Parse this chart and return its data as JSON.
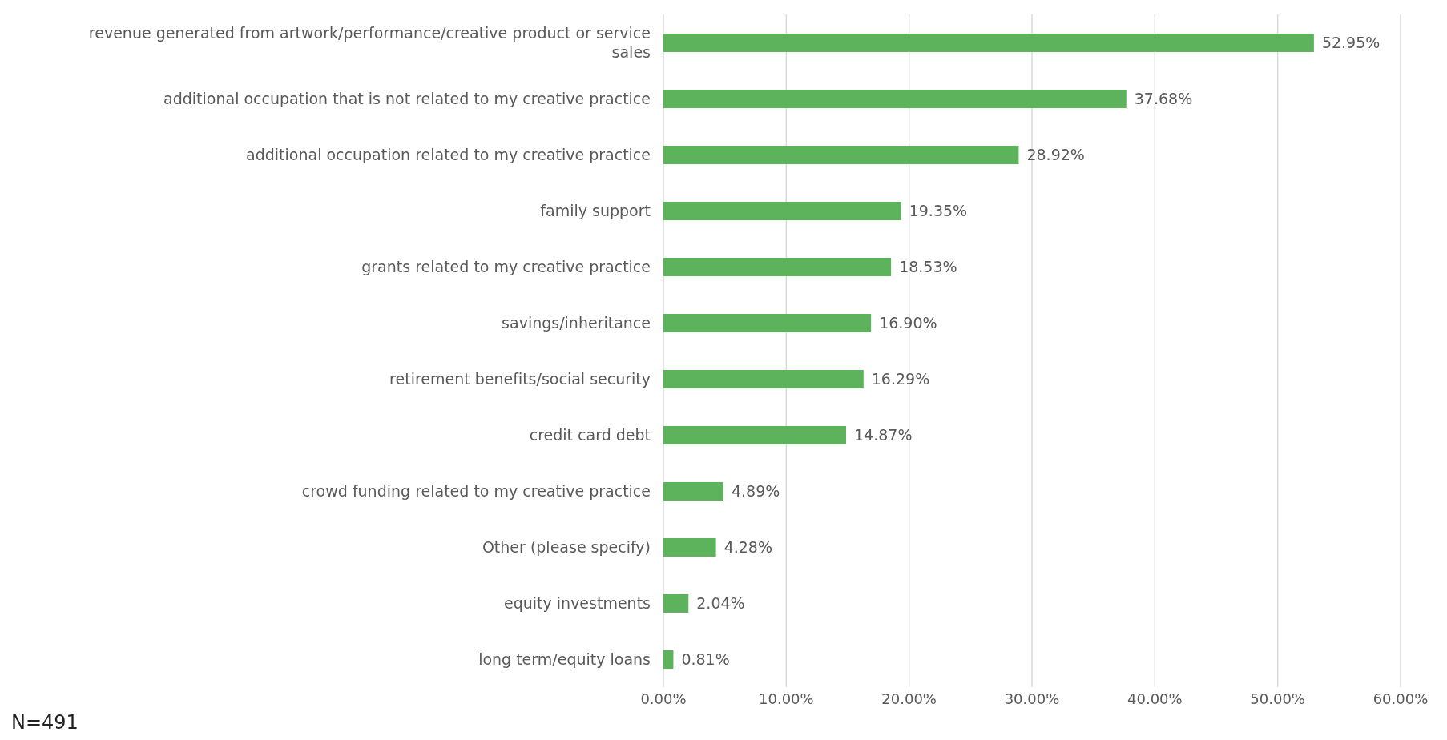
{
  "chart_data": {
    "type": "bar",
    "orientation": "horizontal",
    "categories": [
      "revenue generated from artwork/performance/creative product or service sales",
      "additional occupation that is not related to my creative practice",
      "additional occupation related to my creative practice",
      "family support",
      "grants related to my creative practice",
      "savings/inheritance",
      "retirement benefits/social security",
      "credit card debt",
      "crowd funding related to my creative practice",
      "Other (please specify)",
      "equity investments",
      "long term/equity loans"
    ],
    "values": [
      52.95,
      37.68,
      28.92,
      19.35,
      18.53,
      16.9,
      16.29,
      14.87,
      4.89,
      4.28,
      2.04,
      0.81
    ],
    "value_labels": [
      "52.95%",
      "37.68%",
      "28.92%",
      "19.35%",
      "18.53%",
      "16.90%",
      "16.29%",
      "14.87%",
      "4.89%",
      "4.28%",
      "2.04%",
      "0.81%"
    ],
    "color": "#5cb35c",
    "xlim": [
      0,
      60
    ],
    "xticks": [
      {
        "value": 0,
        "label": "0.00%"
      },
      {
        "value": 10,
        "label": "10.00%"
      },
      {
        "value": 20,
        "label": "20.00%"
      },
      {
        "value": 30,
        "label": "30.00%"
      },
      {
        "value": 40,
        "label": "40.00%"
      },
      {
        "value": 50,
        "label": "50.00%"
      },
      {
        "value": 60,
        "label": "60.00%"
      }
    ],
    "grid": "x",
    "legend": false,
    "annotations": [
      "N=491"
    ]
  }
}
